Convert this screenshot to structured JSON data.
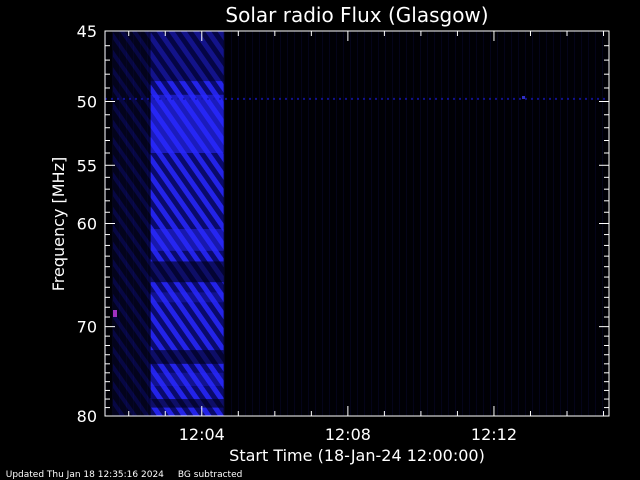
{
  "chart_data": {
    "type": "heatmap",
    "title": "Solar radio Flux (Glasgow)",
    "xlabel": "Start Time (18-Jan-24 12:00:00)",
    "ylabel": "Frequency [MHz]",
    "x_unit": "minutes after 12:00:00",
    "xlim": [
      1.35,
      15.15
    ],
    "ylim": [
      45,
      80
    ],
    "y_axis_scale": "log",
    "y_axis_inverted": true,
    "x_ticks": [
      {
        "value": 4,
        "label": "12:04"
      },
      {
        "value": 8,
        "label": "12:08"
      },
      {
        "value": 12,
        "label": "12:12"
      }
    ],
    "y_ticks": [
      {
        "value": 45,
        "label": "45"
      },
      {
        "value": 50,
        "label": "50"
      },
      {
        "value": 55,
        "label": "55"
      },
      {
        "value": 60,
        "label": "60"
      },
      {
        "value": 70,
        "label": "70"
      },
      {
        "value": 80,
        "label": "80"
      }
    ],
    "colors": {
      "background": "#000008",
      "bright": "#2a2aff",
      "mid": "#1414b0",
      "faint": "#06063a",
      "axis": "#ffffff"
    },
    "emission_features": [
      {
        "name": "striated burst",
        "t_start": 2.6,
        "t_end": 4.6,
        "f_start": 45,
        "f_end": 80,
        "intensity": "high"
      },
      {
        "name": "interference line",
        "t_start": 1.35,
        "t_end": 15.15,
        "f": 49.8,
        "intensity": "medium"
      }
    ],
    "grid": false
  },
  "footer": {
    "updated": "Updated Thu Jan 18 12:35:16 2024",
    "bg": "BG subtracted"
  }
}
